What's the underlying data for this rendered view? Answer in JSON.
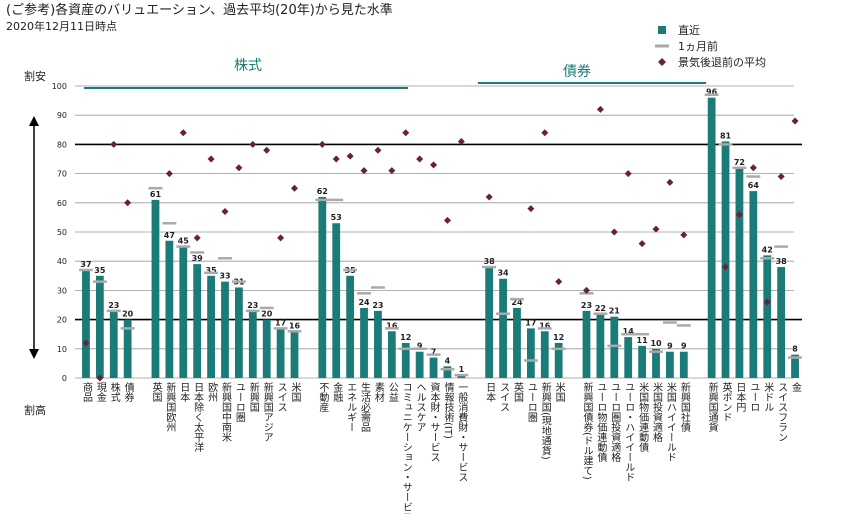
{
  "chart_data": {
    "type": "bar",
    "title": "(ご参考)各資産のバリュエーション、過去平均(20年)から見た水準",
    "subtitle": "2020年12月11日時点",
    "top_label": "割安",
    "bottom_label": "割高",
    "sections": [
      "株式",
      "債券"
    ],
    "categories": [
      "商品",
      "現金",
      "株式",
      "債券",
      null,
      "英国",
      "新興国欧州",
      "日本",
      "日本除く太平洋",
      "欧州",
      "新興国中南米",
      "ユーロ圏",
      "新興国",
      "新興国アジア",
      "スイス",
      "米国",
      null,
      "不動産",
      "金融",
      "エネルギー",
      "生活必需品",
      "素材",
      "公益",
      "コミュニケーション・サービス",
      "ヘルスケア",
      "資本財・サービス",
      "情報技術(IT)",
      "一般消費財・サービス",
      null,
      "日本",
      "スイス",
      "英国",
      "ユーロ圏",
      "新興国(現地通貨)",
      "米国",
      null,
      "新興国債券(ドル建て)",
      "ユーロ物価連動債",
      "ユーロ圏投資適格",
      "ユーロ・ハイイールド",
      "米国物価連動債",
      "米国投資適格",
      "米国ハイイールド",
      "新興国社債",
      null,
      "新興国通貨",
      "英ポンド",
      "日本円",
      "ユーロ",
      "米ドル",
      "スイスフラン",
      "金"
    ],
    "series": [
      {
        "name": "直近",
        "color": "#1b7b78",
        "values": [
          37,
          35,
          23,
          20,
          null,
          61,
          47,
          45,
          39,
          35,
          33,
          31,
          23,
          20,
          17,
          16,
          null,
          62,
          53,
          35,
          24,
          23,
          16,
          12,
          9,
          7,
          4,
          1,
          null,
          38,
          34,
          24,
          17,
          16,
          12,
          null,
          23,
          22,
          21,
          14,
          11,
          10,
          9,
          9,
          null,
          96,
          81,
          72,
          64,
          42,
          38,
          8
        ]
      },
      {
        "name": "1ヵ月前",
        "color": "#aaaaaa",
        "values": [
          37,
          33,
          23,
          17,
          null,
          65,
          53,
          45,
          43,
          36,
          41,
          33,
          23,
          24,
          17,
          16,
          null,
          61,
          61,
          37,
          29,
          31,
          17,
          10,
          10,
          8,
          3,
          1,
          null,
          38,
          22,
          27,
          6,
          17,
          10,
          null,
          29,
          22,
          11,
          15,
          15,
          9,
          19,
          18,
          null,
          97,
          80,
          72,
          69,
          41,
          45,
          7
        ]
      },
      {
        "name": "景気後退前の平均",
        "color": "#6b1f3a",
        "values": [
          12,
          0,
          80,
          60,
          null,
          null,
          70,
          84,
          48,
          75,
          57,
          72,
          80,
          78,
          48,
          65,
          null,
          80,
          75,
          76,
          71,
          78,
          71,
          84,
          75,
          73,
          54,
          81,
          null,
          62,
          null,
          null,
          58,
          84,
          33,
          null,
          30,
          92,
          50,
          70,
          46,
          51,
          67,
          49,
          null,
          null,
          38,
          56,
          72,
          26,
          69,
          88
        ]
      }
    ],
    "ylim": [
      0,
      100
    ],
    "yticks": [
      0,
      10,
      20,
      30,
      40,
      50,
      60,
      70,
      80,
      90,
      100
    ],
    "reference_lines": [
      80,
      20
    ],
    "grid": true
  }
}
